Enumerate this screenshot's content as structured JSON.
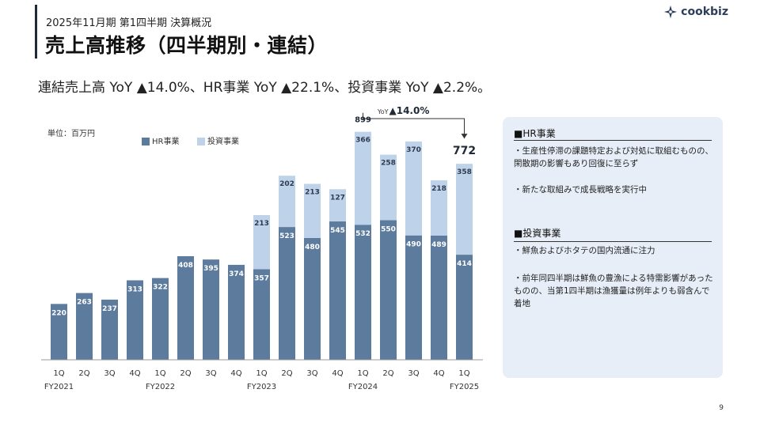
{
  "header": {
    "subtitle": "2025年11月期 第1四半期 決算概況",
    "title": "売上高推移（四半期別・連結）",
    "logo_text": "cookbiz",
    "lead": "連結売上高 YoY ▲14.0%、HR事業 YoY ▲22.1%、投資事業 YoY ▲2.2%。"
  },
  "chart_data": {
    "type": "bar",
    "stacked": true,
    "unit_label": "単位：百万円",
    "categories": [
      "1Q",
      "2Q",
      "3Q",
      "4Q",
      "1Q",
      "2Q",
      "3Q",
      "4Q",
      "1Q",
      "2Q",
      "3Q",
      "4Q",
      "1Q",
      "2Q",
      "3Q",
      "4Q",
      "1Q"
    ],
    "fiscal_years": [
      {
        "label": "FY2021",
        "start_index": 0
      },
      {
        "label": "FY2022",
        "start_index": 4
      },
      {
        "label": "FY2023",
        "start_index": 8
      },
      {
        "label": "FY2024",
        "start_index": 12
      },
      {
        "label": "FY2025",
        "start_index": 16
      }
    ],
    "series": [
      {
        "name": "HR事業",
        "color": "#5d7b9d",
        "values": [
          220,
          263,
          237,
          313,
          322,
          408,
          395,
          374,
          357,
          523,
          480,
          545,
          532,
          550,
          490,
          489,
          414
        ]
      },
      {
        "name": "投資事業",
        "color": "#bed2ea",
        "values": [
          0,
          0,
          0,
          0,
          0,
          0,
          0,
          0,
          213,
          202,
          213,
          127,
          366,
          258,
          370,
          218,
          358
        ]
      }
    ],
    "totals": {
      "899": "899",
      "772": "772"
    },
    "total_labels": [
      {
        "index": 12,
        "text": "899"
      },
      {
        "index": 16,
        "text": "772"
      }
    ],
    "ylim": [
      0,
      950
    ],
    "yoy_annotation": {
      "prefix": "YoY",
      "text": "▲14.0%"
    },
    "legend_position": "top"
  },
  "panel": {
    "hr_title": "■HR事業",
    "hr_bullets": [
      "・生産性停滞の課題特定および対処に取組むものの、閑散期の影響もあり回復に至らず",
      "・新たな取組みで成長戦略を実行中"
    ],
    "inv_title": "■投資事業",
    "inv_bullets": [
      "・鮮魚およびホタテの国内流通に注力",
      "・前年同四半期は鮮魚の豊漁による特需影響があったものの、当第1四半期は漁獲量は例年よりも弱含んで着地"
    ]
  },
  "page_number": "9"
}
